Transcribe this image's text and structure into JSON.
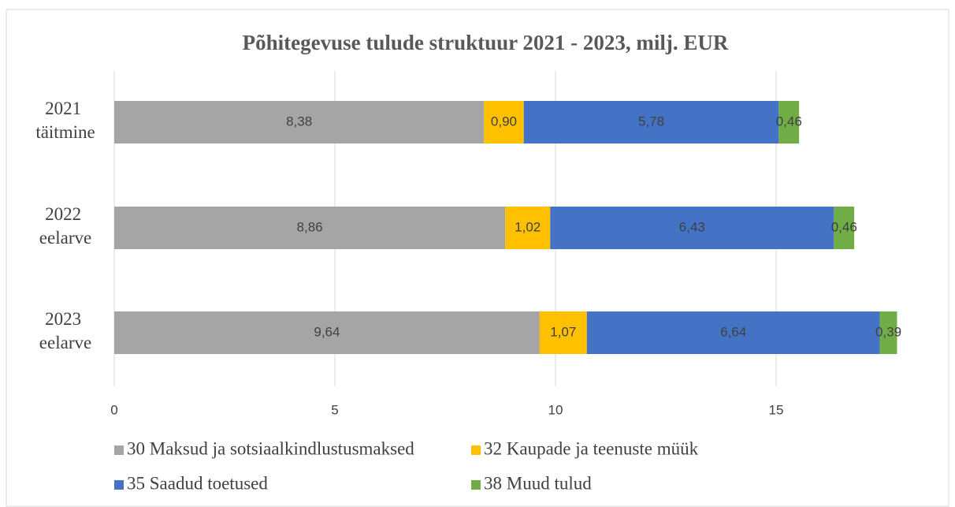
{
  "chart_data": {
    "type": "bar",
    "orientation": "horizontal",
    "stacked": true,
    "title": "Põhitegevuse tulude struktuur 2021 - 2023, milj. EUR",
    "categories": [
      "2021 täitmine",
      "2022 eelarve",
      "2023 eelarve"
    ],
    "series": [
      {
        "name": "30 Maksud ja sotsiaalkindlustusmaksed",
        "color": "#a5a5a5",
        "values": [
          8.38,
          8.86,
          9.64
        ],
        "value_labels": [
          "8,38",
          "8,86",
          "9,64"
        ]
      },
      {
        "name": "32 Kaupade ja teenuste müük",
        "color": "#ffc000",
        "values": [
          0.9,
          1.02,
          1.07
        ],
        "value_labels": [
          "0,90",
          "1,02",
          "1,07"
        ]
      },
      {
        "name": "35 Saadud toetused",
        "color": "#4472c4",
        "values": [
          5.78,
          6.43,
          6.64
        ],
        "value_labels": [
          "5,78",
          "6,43",
          "6,64"
        ]
      },
      {
        "name": "38 Muud tulud",
        "color": "#70ad47",
        "values": [
          0.46,
          0.46,
          0.39
        ],
        "value_labels": [
          "0,46",
          "0,46",
          "0,39"
        ]
      }
    ],
    "xlim": [
      0,
      18
    ],
    "xticks": [
      0,
      5,
      10,
      15
    ],
    "grid": true,
    "legend": "bottom"
  }
}
